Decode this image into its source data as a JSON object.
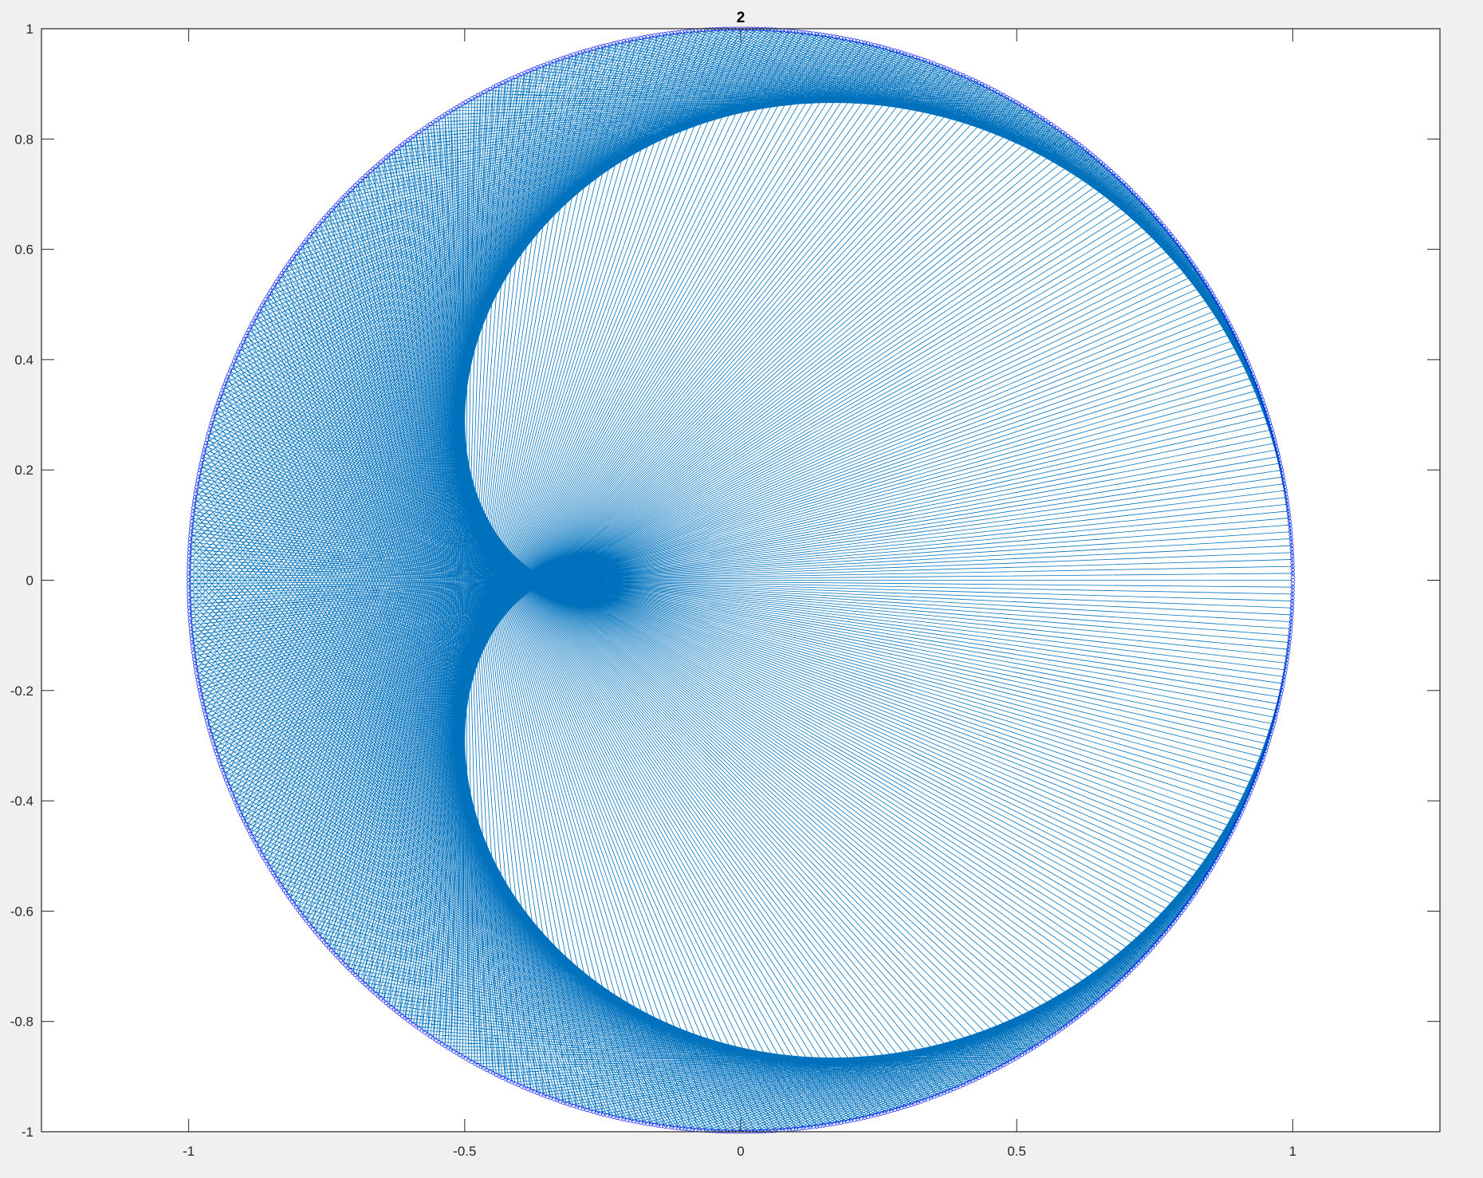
{
  "chart_data": {
    "type": "line",
    "title": "2",
    "xlabel": "",
    "ylabel": "",
    "xlim": [
      -1.2667,
      1.2667
    ],
    "ylim": [
      -1,
      1
    ],
    "x_ticks": [
      -1,
      -0.5,
      0,
      0.5,
      1
    ],
    "x_tick_labels": [
      "-1",
      "-0.5",
      "0",
      "0.5",
      "1"
    ],
    "y_ticks": [
      -1,
      -0.8,
      -0.6,
      -0.4,
      -0.2,
      0,
      0.2,
      0.4,
      0.6,
      0.8,
      1
    ],
    "y_tick_labels": [
      "-1",
      "-0.8",
      "-0.6",
      "-0.4",
      "-0.2",
      "0",
      "0.2",
      "0.4",
      "0.6",
      "0.8",
      "1"
    ],
    "grid": false,
    "series": [
      {
        "kind": "chords",
        "description_points_on_unit_circle": 1000,
        "multiplier": 2,
        "color": "#0072BD"
      },
      {
        "kind": "circle-markers",
        "points": 1000,
        "radius": 1,
        "color": "#0000FF"
      }
    ]
  }
}
